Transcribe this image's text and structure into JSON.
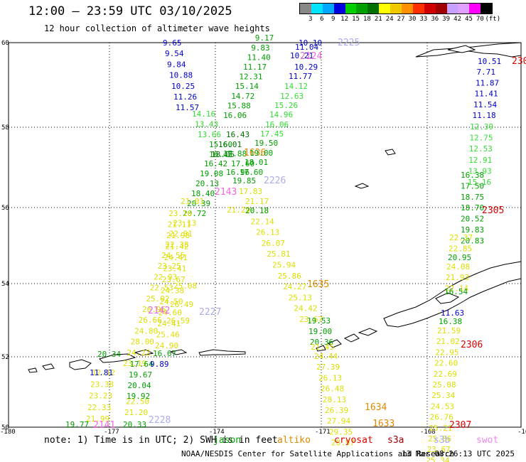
{
  "header": {
    "title": "12:00 — 23:59 UTC 03/10/2025",
    "subtitle": "12 hour collection of altimeter wave heights"
  },
  "legend": {
    "unit": "(ft)",
    "bins": [
      {
        "label": "3",
        "color": "#888888"
      },
      {
        "label": "6",
        "color": "#00e4ff"
      },
      {
        "label": "9",
        "color": "#00a8ff"
      },
      {
        "label": "12",
        "color": "#0000e0"
      },
      {
        "label": "15",
        "color": "#00d000"
      },
      {
        "label": "18",
        "color": "#00a000"
      },
      {
        "label": "21",
        "color": "#007000"
      },
      {
        "label": "24",
        "color": "#ffff00"
      },
      {
        "label": "27",
        "color": "#f0c800"
      },
      {
        "label": "30",
        "color": "#ff9000"
      },
      {
        "label": "33",
        "color": "#ff3000"
      },
      {
        "label": "36",
        "color": "#d00000"
      },
      {
        "label": "39",
        "color": "#a00000"
      },
      {
        "label": "42",
        "color": "#c8a0ff"
      },
      {
        "label": "45",
        "color": "#e0a0ff"
      },
      {
        "label": "70",
        "color": "#ff00ff"
      },
      {
        "label": "",
        "color": "#000000"
      }
    ]
  },
  "axes": {
    "lat_labels": [
      "60",
      "58",
      "56",
      "54",
      "52",
      "50"
    ],
    "lon_labels": [
      "-180",
      "-177",
      "-174",
      "-171",
      "-168",
      "-16"
    ]
  },
  "colors": {
    "blue": "#0000cc",
    "lightgreen": "#33dd33",
    "green": "#00a000",
    "darkgreen": "#007000",
    "yellow": "#dddd00",
    "orange": "#e08800",
    "red": "#dd0000",
    "pink": "#ee66dd",
    "lavender": "#aaaaee"
  },
  "tracks": [
    {
      "start": [
        229,
        60
      ],
      "step": [
        3,
        15.2
      ],
      "color": "blue",
      "values": [
        "9.65",
        "9.54",
        "9.84",
        "10.88",
        "10.25",
        "11.26",
        "11.57"
      ]
    },
    {
      "start": [
        270,
        160
      ],
      "step": [
        4,
        14.5
      ],
      "color": "lightgreen",
      "values": [
        "14.16",
        "13.43",
        "13.66"
      ]
    },
    {
      "start": [
        294,
        203
      ],
      "step": [
        0,
        14.2
      ],
      "color": "green",
      "values": [
        "15.60",
        "16.45"
      ]
    },
    {
      "start": [
        287,
        230
      ],
      "step": [
        -6,
        14
      ],
      "color": "green",
      "values": [
        "16.42",
        "19.08",
        "20.13",
        "18.40",
        "20.39",
        "20.72"
      ]
    },
    {
      "start": [
        254,
        283
      ],
      "step": [
        -5.4,
        15.2
      ],
      "color": "yellow",
      "values": [
        "21.01",
        "",
        "23.13",
        "22.01",
        "22.38",
        "24.55",
        "23.25",
        "22.93",
        "22.53",
        "25.02",
        "26.96",
        "26.66",
        "24.80",
        "28.00",
        "24.22",
        "23.19"
      ]
    },
    {
      "start": [
        129,
        524
      ],
      "step": [
        -2,
        16.3
      ],
      "color": "yellow",
      "values": [
        "12.12",
        "23.38",
        "23.23",
        "22.33",
        "21.99"
      ]
    },
    {
      "start": [
        92,
        597
      ],
      "step": [
        0,
        0
      ],
      "color": "green",
      "values": [
        "19.77"
      ]
    },
    {
      "start": [
        137,
        498
      ],
      "step": [
        0,
        0
      ],
      "color": "green",
      "values": [
        "20.34"
      ]
    },
    {
      "start": [
        126,
        524
      ],
      "step": [
        0,
        0
      ],
      "color": "blue",
      "values": [
        "11.81"
      ]
    },
    {
      "start": [
        173,
        597
      ],
      "step": [
        0,
        0
      ],
      "color": "green",
      "values": [
        "20.33"
      ]
    },
    {
      "start": [
        175,
        580
      ],
      "step": [
        2,
        -15.5
      ],
      "color": "yellow",
      "values": [
        "21.20",
        "22.50"
      ]
    },
    {
      "start": [
        178,
        557
      ],
      "step": [
        1.5,
        -15
      ],
      "color": "green",
      "values": [
        "19.92",
        "20.04",
        "19.67",
        "17.64"
      ]
    },
    {
      "start": [
        211,
        512
      ],
      "step": [
        0,
        0
      ],
      "color": "blue",
      "values": [
        "9.89"
      ]
    },
    {
      "start": [
        215,
        497
      ],
      "step": [
        0,
        0
      ],
      "color": "green",
      "values": [
        "16.67"
      ]
    },
    {
      "start": [
        218,
        486
      ],
      "step": [
        1.6,
        -15.5
      ],
      "color": "yellow",
      "values": [
        "24.90",
        "25.46",
        "24.41",
        "24.60",
        "24.50",
        "24.38",
        "23.67",
        "23.41",
        "24.41",
        "21.42",
        "21.98",
        "21.11",
        "23.16"
      ]
    },
    {
      "start": [
        234,
        451
      ],
      "step": [
        0,
        0
      ],
      "color": "yellow",
      "values": [
        "26.59"
      ]
    },
    {
      "start": [
        239,
        428
      ],
      "step": [
        0,
        0
      ],
      "color": "yellow",
      "values": [
        "26.49"
      ]
    },
    {
      "start": [
        244,
        402
      ],
      "step": [
        0,
        0
      ],
      "color": "yellow",
      "values": [
        "25.08"
      ]
    },
    {
      "start": [
        314,
        162
      ],
      "step": [
        5.6,
        -13.6
      ],
      "color": "green",
      "values": [
        "16.06",
        "15.88",
        "14.72",
        "15.14",
        "12.31",
        "11.17",
        "11.40",
        "9.83",
        "9.17"
      ]
    },
    {
      "start": [
        318,
        189
      ],
      "step": [
        0,
        0
      ],
      "color": "darkgreen",
      "values": [
        "16.43"
      ]
    },
    {
      "start": [
        307,
        203
      ],
      "step": [
        0,
        0
      ],
      "color": "darkgreen",
      "values": [
        "16.01"
      ]
    },
    {
      "start": [
        297,
        217
      ],
      "step": [
        3,
        0
      ],
      "color": "darkgreen",
      "values": [
        "18.05"
      ]
    },
    {
      "start": [
        314,
        216
      ],
      "step": [
        0,
        0
      ],
      "color": "green",
      "values": [
        "17.88"
      ]
    },
    {
      "start": [
        343,
        215
      ],
      "step": [
        0,
        0
      ],
      "color": "orange",
      "values": [
        "1636"
      ]
    },
    {
      "start": [
        325,
        230
      ],
      "step": [
        0,
        0
      ],
      "color": "green",
      "values": [
        "17.60"
      ]
    },
    {
      "start": [
        318,
        242
      ],
      "step": [
        0,
        0
      ],
      "color": "green",
      "values": [
        "16.96"
      ]
    },
    {
      "start": [
        337,
        242
      ],
      "step": [
        0,
        0
      ],
      "color": "green",
      "values": [
        "17.60"
      ]
    },
    {
      "start": [
        327,
        254
      ],
      "step": [
        0,
        0
      ],
      "color": "green",
      "values": [
        "19.85"
      ]
    },
    {
      "start": [
        336,
        269
      ],
      "step": [
        0,
        0
      ],
      "color": "yellow",
      "values": [
        "17.83"
      ]
    },
    {
      "start": [
        345,
        283
      ],
      "step": [
        0,
        0
      ],
      "color": "yellow",
      "values": [
        "21.17"
      ]
    },
    {
      "start": [
        319,
        295
      ],
      "step": [
        0,
        0
      ],
      "color": "yellow",
      "values": [
        "21.29"
      ]
    },
    {
      "start": [
        344,
        228
      ],
      "step": [
        0,
        0
      ],
      "color": "green",
      "values": [
        "18.01"
      ]
    },
    {
      "start": [
        351,
        215
      ],
      "step": [
        0,
        0
      ],
      "color": "green",
      "values": [
        "19.00"
      ]
    },
    {
      "start": [
        358,
        201
      ],
      "step": [
        0,
        0
      ],
      "color": "green",
      "values": [
        "19.50"
      ]
    },
    {
      "start": [
        366,
        188
      ],
      "step": [
        0,
        0
      ],
      "color": "lightgreen",
      "values": [
        "17.45"
      ]
    },
    {
      "start": [
        373,
        175
      ],
      "step": [
        0,
        0
      ],
      "color": "lightgreen",
      "values": [
        "16.06"
      ]
    },
    {
      "start": [
        379,
        161
      ],
      "step": [
        0,
        0
      ],
      "color": "lightgreen",
      "values": [
        "14.96"
      ]
    },
    {
      "start": [
        386,
        148
      ],
      "step": [
        0,
        0
      ],
      "color": "lightgreen",
      "values": [
        "15.26"
      ]
    },
    {
      "start": [
        394,
        135
      ],
      "step": [
        0,
        0
      ],
      "color": "lightgreen",
      "values": [
        "12.63"
      ]
    },
    {
      "start": [
        400,
        121
      ],
      "step": [
        0,
        0
      ],
      "color": "lightgreen",
      "values": [
        "14.12"
      ]
    },
    {
      "start": [
        406,
        107
      ],
      "step": [
        0,
        0
      ],
      "color": "blue",
      "values": [
        "11.77"
      ]
    },
    {
      "start": [
        414,
        94
      ],
      "step": [
        0,
        0
      ],
      "color": "blue",
      "values": [
        "10.29"
      ]
    },
    {
      "start": [
        408,
        78
      ],
      "step": [
        0,
        0
      ],
      "color": "blue",
      "values": [
        "10.21"
      ]
    },
    {
      "start": [
        415,
        66
      ],
      "step": [
        0,
        0
      ],
      "color": "blue",
      "values": [
        "11.04"
      ]
    },
    {
      "start": [
        420,
        60
      ],
      "step": [
        0,
        0
      ],
      "color": "blue",
      "values": [
        "10.10"
      ]
    },
    {
      "start": [
        345,
        296
      ],
      "step": [
        7.6,
        15.3
      ],
      "color": "yellow",
      "values": [
        "20.18",
        "22.14",
        "26.13",
        "26.07",
        "25.81",
        "25.94",
        "25.86",
        "24.27",
        "25.13",
        "24.42",
        "23.67"
      ]
    },
    {
      "start": [
        345,
        296
      ],
      "step": [
        0,
        0
      ],
      "color": "green",
      "values": [
        "20.18"
      ]
    },
    {
      "start": [
        432,
        451
      ],
      "step": [
        2,
        15
      ],
      "color": "green",
      "values": [
        "19.53",
        "19.00",
        "20.36"
      ]
    },
    {
      "start": [
        437,
        488
      ],
      "step": [
        0,
        0
      ],
      "color": "yellow",
      "values": [
        "21.45"
      ]
    },
    {
      "start": [
        442,
        501
      ],
      "step": [
        3,
        15.2
      ],
      "color": "yellow",
      "values": [
        "24.44",
        "27.39",
        "26.13",
        "26.48",
        "28.13",
        "26.39",
        "27.94",
        "29.35",
        "28.97"
      ]
    },
    {
      "start": [
        672,
        86
      ],
      "step": [
        -1.5,
        15.2
      ],
      "color": "blue",
      "values": [
        "10.51",
        "7.71",
        "11.87",
        "11.41",
        "11.54",
        "11.18"
      ]
    },
    {
      "start": [
        661,
        178
      ],
      "step": [
        -0.6,
        15.6
      ],
      "color": "lightgreen",
      "values": [
        "12.39",
        "12.75",
        "12.53",
        "12.91",
        "13.93",
        "15.16"
      ]
    },
    {
      "start": [
        648,
        246
      ],
      "step": [
        0,
        15.4
      ],
      "color": "green",
      "values": [
        "16.38",
        "17.50",
        "18.75",
        "18.70",
        "20.52",
        "19.83",
        "20.83"
      ]
    },
    {
      "start": [
        632,
        334
      ],
      "step": [
        -1,
        15.5
      ],
      "color": "yellow",
      "values": [
        "22.37",
        "22.85"
      ]
    },
    {
      "start": [
        630,
        362
      ],
      "step": [
        0,
        0
      ],
      "color": "green",
      "values": [
        "20.95"
      ]
    },
    {
      "start": [
        628,
        375
      ],
      "step": [
        -1,
        15.2
      ],
      "color": "yellow",
      "values": [
        "24.08",
        "21.93",
        "22.14"
      ]
    },
    {
      "start": [
        625,
        410
      ],
      "step": [
        0,
        0
      ],
      "color": "green",
      "values": [
        "16.54"
      ]
    },
    {
      "start": [
        620,
        440
      ],
      "step": [
        0,
        0
      ],
      "color": "blue",
      "values": [
        "11.63"
      ]
    },
    {
      "start": [
        617,
        452
      ],
      "step": [
        0,
        0
      ],
      "color": "green",
      "values": [
        "16.38"
      ]
    },
    {
      "start": [
        615,
        465
      ],
      "step": [
        -1.3,
        15.2
      ],
      "color": "yellow",
      "values": [
        "21.59",
        "21.02",
        "22.95",
        "22.60",
        "22.69",
        "25.08",
        "25.34",
        "24.53",
        "26.76",
        "25.21",
        "25.86",
        "23.67",
        "25.34"
      ]
    },
    {
      "start": [
        720,
        86
      ],
      "step": [
        0,
        0
      ],
      "color": "red",
      "values": [
        "230"
      ]
    },
    {
      "start": [
        678,
        296
      ],
      "step": [
        0,
        0
      ],
      "color": "red",
      "values": [
        "2305"
      ]
    },
    {
      "start": [
        648,
        485
      ],
      "step": [
        0,
        0
      ],
      "color": "red",
      "values": [
        "2306"
      ]
    },
    {
      "start": [
        632,
        598
      ],
      "step": [
        0,
        0
      ],
      "color": "red",
      "values": [
        "2307"
      ]
    },
    {
      "start": [
        302,
        270
      ],
      "step": [
        0,
        0
      ],
      "color": "pink",
      "values": [
        "2143"
      ]
    },
    {
      "start": [
        208,
        437
      ],
      "step": [
        0,
        0
      ],
      "color": "pink",
      "values": [
        "2142"
      ]
    },
    {
      "start": [
        131,
        598
      ],
      "step": [
        0,
        0
      ],
      "color": "pink",
      "values": [
        "2141"
      ]
    },
    {
      "start": [
        422,
        79
      ],
      "step": [
        0,
        0
      ],
      "color": "pink",
      "values": [
        "2124"
      ]
    },
    {
      "start": [
        475,
        60
      ],
      "step": [
        0,
        0
      ],
      "color": "lavender",
      "values": [
        "2225"
      ]
    },
    {
      "start": [
        371,
        254
      ],
      "step": [
        0,
        0
      ],
      "color": "lavender",
      "values": [
        "2226"
      ]
    },
    {
      "start": [
        280,
        439
      ],
      "step": [
        0,
        0
      ],
      "color": "lavender",
      "values": [
        "2227"
      ]
    },
    {
      "start": [
        209,
        591
      ],
      "step": [
        0,
        0
      ],
      "color": "lavender",
      "values": [
        "2228"
      ]
    },
    {
      "start": [
        432,
        400
      ],
      "step": [
        0,
        0
      ],
      "color": "orange",
      "values": [
        "1635"
      ]
    },
    {
      "start": [
        513,
        573
      ],
      "step": [
        0,
        0
      ],
      "color": "orange",
      "values": [
        "1634"
      ]
    },
    {
      "start": [
        524,
        596
      ],
      "step": [
        0,
        0
      ],
      "color": "orange",
      "values": [
        "1633"
      ]
    }
  ],
  "note": {
    "prefix": "note: 1) Time is in UTC; 2) SWH is in feet",
    "satellites": [
      {
        "name": "jason",
        "color": "#00a000"
      },
      {
        "name": "altiko",
        "color": "#e08800"
      },
      {
        "name": "cryosat",
        "color": "#dd0000"
      },
      {
        "name": "s3a",
        "color": "#a00000"
      },
      {
        "name": "s3b",
        "color": "#aaaaee"
      },
      {
        "name": "swot",
        "color": "#ee88ee"
      }
    ]
  },
  "footer": {
    "credit": "NOAA/NESDIS Center for Satellite Applications and Research",
    "timestamp": "13 Mar 08:26:13 UTC 2025"
  }
}
